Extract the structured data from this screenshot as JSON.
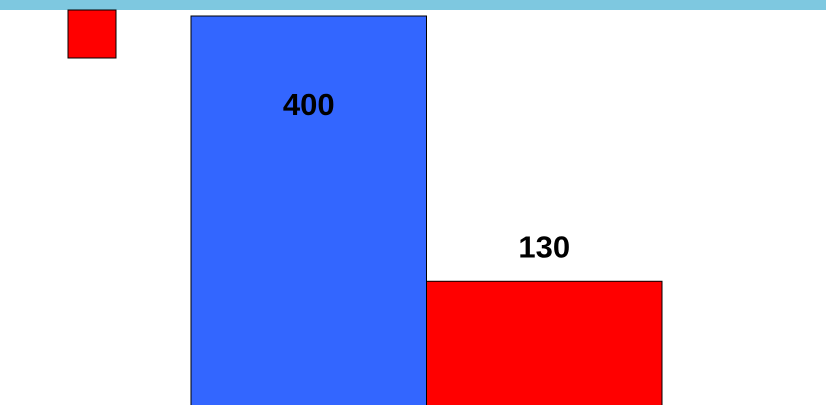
{
  "chart_data": {
    "type": "bar",
    "values": [
      400,
      130
    ],
    "colors": [
      "#3366ff",
      "#ff0000"
    ],
    "legend_color": "#ff0000"
  }
}
